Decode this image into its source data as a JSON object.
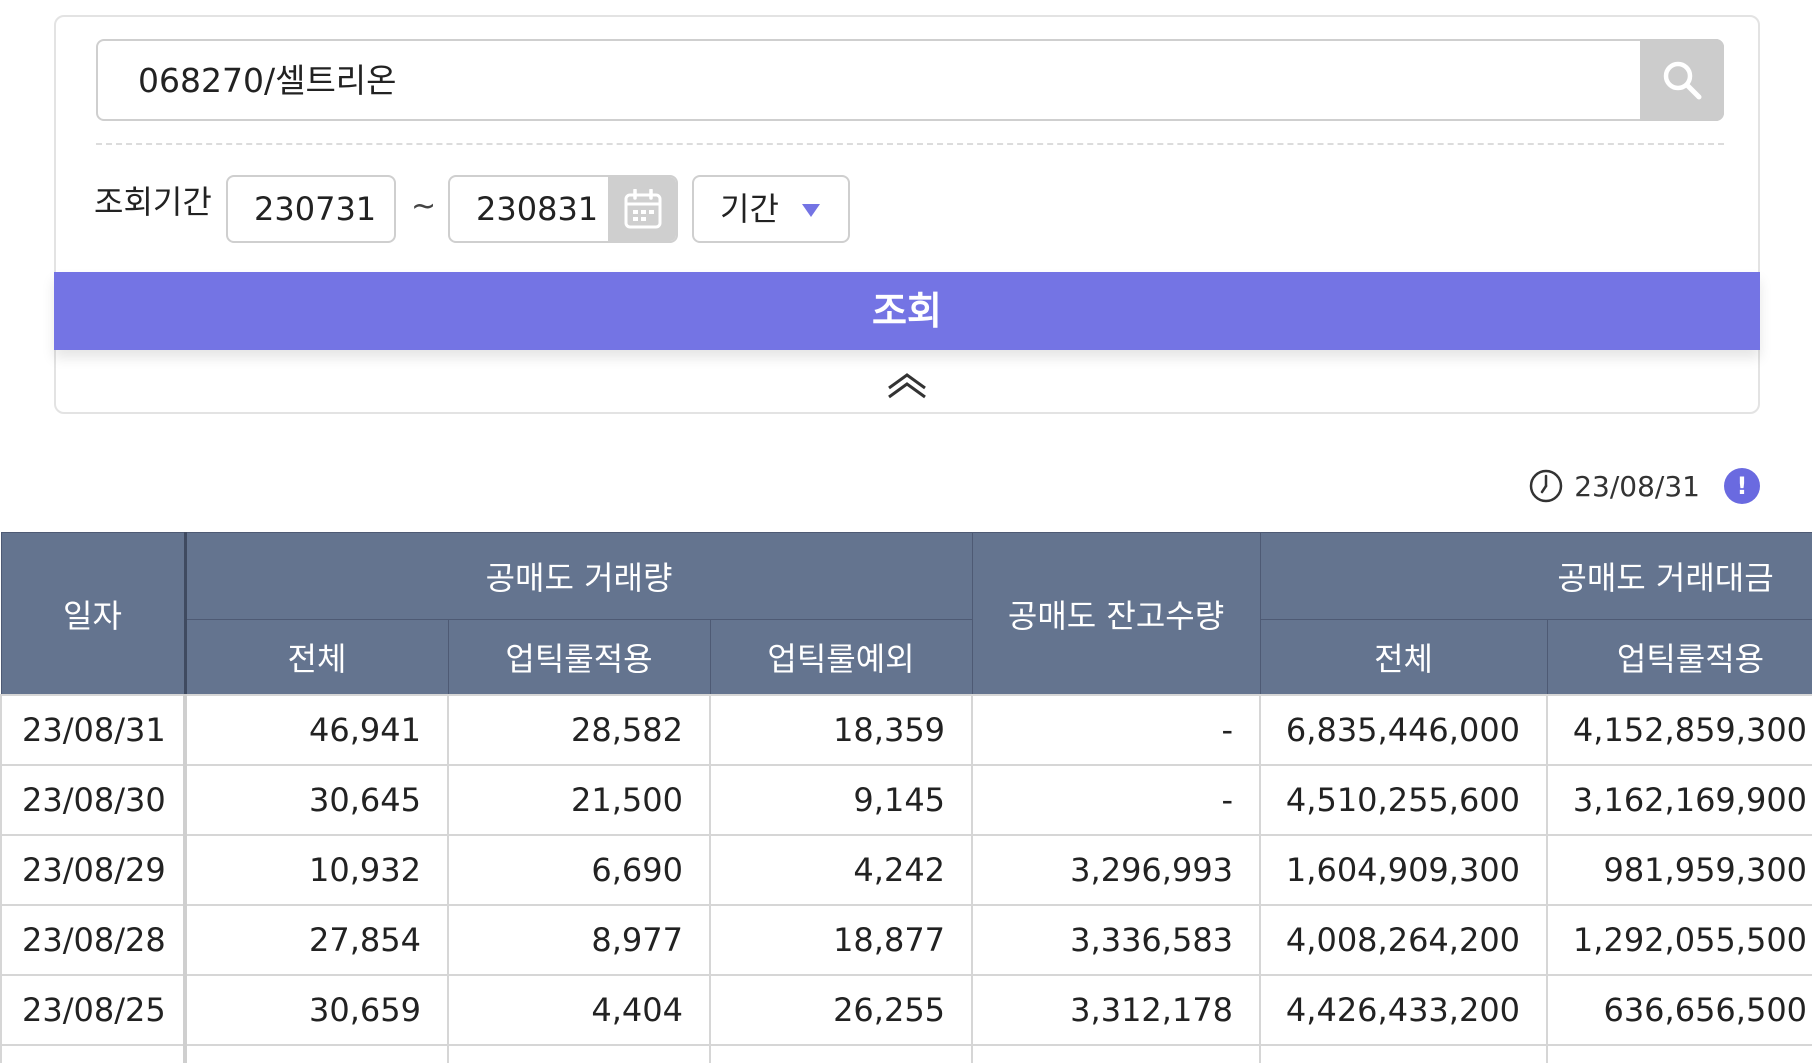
{
  "search": {
    "value": "068270/셀트리온",
    "button_icon": "search-icon"
  },
  "period": {
    "label": "조회기간",
    "from": "230731",
    "separator": "~",
    "to": "230831",
    "calendar_icon": "calendar-icon",
    "select_value": "기간"
  },
  "query_button": "조회",
  "collapse_icon": "chevron-double-up-icon",
  "update": {
    "time": "23/08/31",
    "info": "!"
  },
  "colors": {
    "accent": "#7474e4",
    "header_bg": "#64748f"
  },
  "table": {
    "headers": {
      "date": "일자",
      "short_volume": "공매도 거래량",
      "short_balance": "공매도 잔고수량",
      "short_amount": "공매도 거래대금",
      "sub": {
        "total": "전체",
        "uptick_applied": "업틱룰적용",
        "uptick_exempt": "업틱룰예외",
        "amount_total": "전체",
        "amount_uptick_applied": "업틱룰적용"
      }
    },
    "rows": [
      [
        "23/08/31",
        "46,941",
        "28,582",
        "18,359",
        "-",
        "6,835,446,000",
        "4,152,859,300"
      ],
      [
        "23/08/30",
        "30,645",
        "21,500",
        "9,145",
        "-",
        "4,510,255,600",
        "3,162,169,900"
      ],
      [
        "23/08/29",
        "10,932",
        "6,690",
        "4,242",
        "3,296,993",
        "1,604,909,300",
        "981,959,300"
      ],
      [
        "23/08/28",
        "27,854",
        "8,977",
        "18,877",
        "3,336,583",
        "4,008,264,200",
        "1,292,055,500"
      ],
      [
        "23/08/25",
        "30,659",
        "4,404",
        "26,255",
        "3,312,178",
        "4,426,433,200",
        "636,656,500"
      ]
    ]
  }
}
